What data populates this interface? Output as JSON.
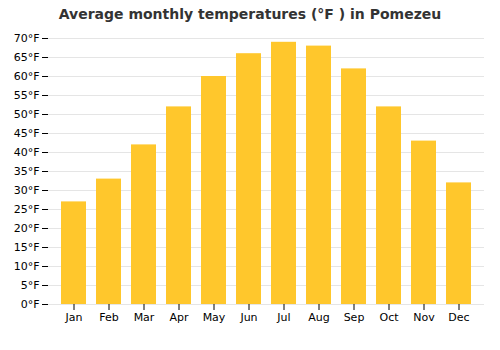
{
  "chart_data": {
    "type": "bar",
    "title": "Average monthly temperatures (°F ) in Pomezeu",
    "categories": [
      "Jan",
      "Feb",
      "Mar",
      "Apr",
      "May",
      "Jun",
      "Jul",
      "Aug",
      "Sep",
      "Oct",
      "Nov",
      "Dec"
    ],
    "values": [
      27,
      33,
      42,
      52,
      60,
      66,
      69,
      68,
      62,
      52,
      43,
      32
    ],
    "color": "#FFC72C",
    "ylim": [
      0,
      70
    ],
    "yticks": [
      {
        "value": 0,
        "label": "0°F"
      },
      {
        "value": 5,
        "label": "5°F"
      },
      {
        "value": 10,
        "label": "10°F"
      },
      {
        "value": 15,
        "label": "15°F"
      },
      {
        "value": 20,
        "label": "20°F"
      },
      {
        "value": 25,
        "label": "25°F"
      },
      {
        "value": 30,
        "label": "30°F"
      },
      {
        "value": 35,
        "label": "35°F"
      },
      {
        "value": 40,
        "label": "40°F"
      },
      {
        "value": 45,
        "label": "45°F"
      },
      {
        "value": 50,
        "label": "50°F"
      },
      {
        "value": 55,
        "label": "55°F"
      },
      {
        "value": 60,
        "label": "60°F"
      },
      {
        "value": 65,
        "label": "65°F"
      },
      {
        "value": 70,
        "label": "70°F"
      }
    ],
    "grid": true
  }
}
